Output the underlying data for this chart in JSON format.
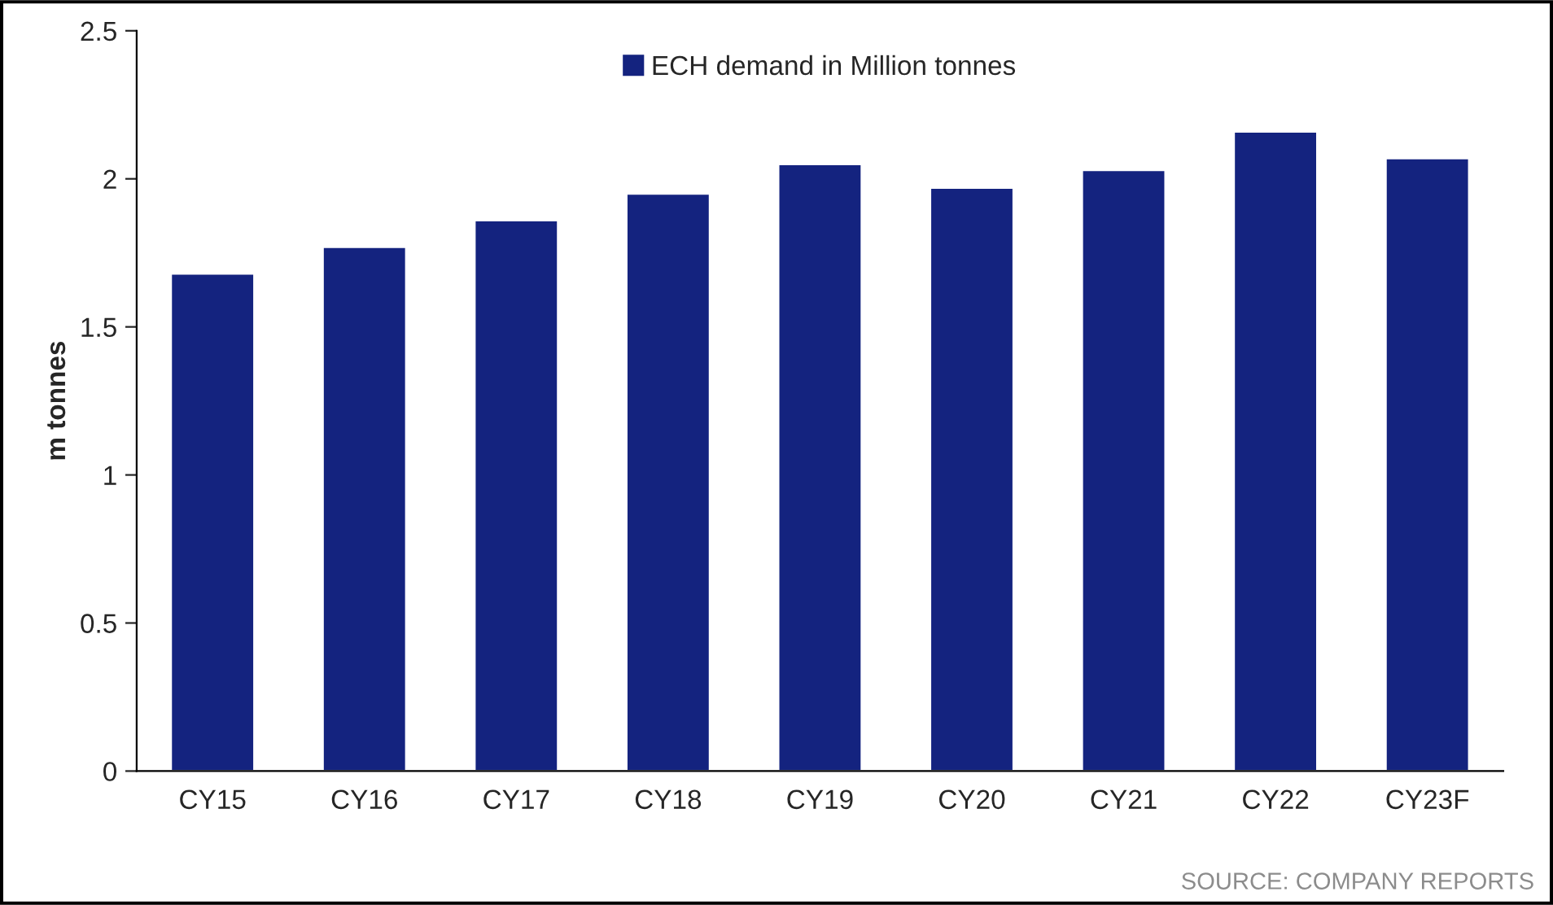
{
  "chart_data": {
    "type": "bar",
    "ylabel": "m tonnes",
    "categories": [
      "CY15",
      "CY16",
      "CY17",
      "CY18",
      "CY19",
      "CY20",
      "CY21",
      "CY22",
      "CY23F"
    ],
    "series": [
      {
        "name": "ECH demand in Million tonnes",
        "color": "#14237f",
        "values": [
          1.68,
          1.77,
          1.86,
          1.95,
          2.05,
          1.97,
          2.03,
          2.16,
          2.07
        ]
      }
    ],
    "ylim": [
      0,
      2.5
    ],
    "yticks": [
      0,
      0.5,
      1,
      1.5,
      2,
      2.5
    ],
    "grid": false,
    "legend": "top",
    "annotations": [
      "SOURCE: COMPANY REPORTS"
    ]
  }
}
